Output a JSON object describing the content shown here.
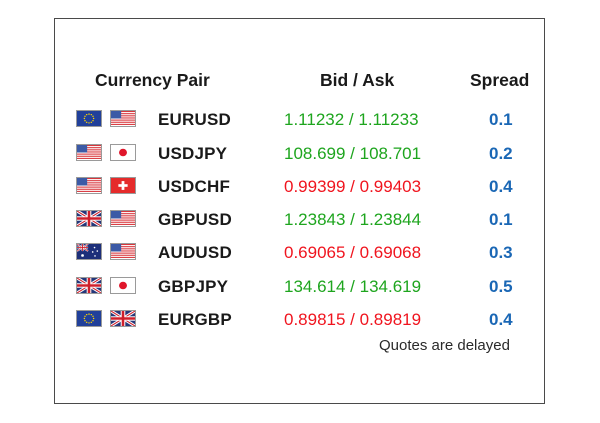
{
  "headers": {
    "pair": "Currency Pair",
    "bid_ask": "Bid / Ask",
    "spread": "Spread"
  },
  "colors": {
    "up": "#1ea51e",
    "down": "#f0141e",
    "spread": "#1a67b5"
  },
  "rows": [
    {
      "symbol": "EURUSD",
      "quote": "1.11232 / 1.11233",
      "direction": "up",
      "spread": "0.1",
      "flags": [
        "eu-flag-icon",
        "us-flag-icon"
      ]
    },
    {
      "symbol": "USDJPY",
      "quote": "108.699 / 108.701",
      "direction": "up",
      "spread": "0.2",
      "flags": [
        "us-flag-icon",
        "jp-flag-icon"
      ]
    },
    {
      "symbol": "USDCHF",
      "quote": "0.99399 / 0.99403",
      "direction": "down",
      "spread": "0.4",
      "flags": [
        "us-flag-icon",
        "ch-flag-icon"
      ]
    },
    {
      "symbol": "GBPUSD",
      "quote": "1.23843 / 1.23844",
      "direction": "up",
      "spread": "0.1",
      "flags": [
        "uk-flag-icon",
        "us-flag-icon"
      ]
    },
    {
      "symbol": "AUDUSD",
      "quote": "0.69065 / 0.69068",
      "direction": "down",
      "spread": "0.3",
      "flags": [
        "au-flag-icon",
        "us-flag-icon"
      ]
    },
    {
      "symbol": "GBPJPY",
      "quote": "134.614 / 134.619",
      "direction": "up",
      "spread": "0.5",
      "flags": [
        "uk-flag-icon",
        "jp-flag-icon"
      ]
    },
    {
      "symbol": "EURGBP",
      "quote": "0.89815 / 0.89819",
      "direction": "down",
      "spread": "0.4",
      "flags": [
        "eu-flag-icon",
        "uk-flag-icon"
      ]
    }
  ],
  "note": "Quotes are delayed"
}
